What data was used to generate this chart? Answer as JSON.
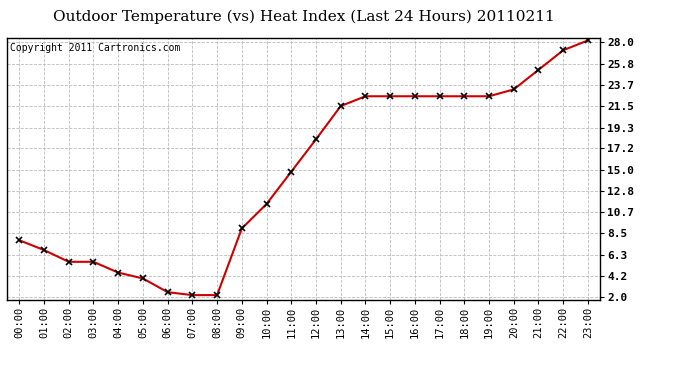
{
  "title": "Outdoor Temperature (vs) Heat Index (Last 24 Hours) 20110211",
  "copyright": "Copyright 2011 Cartronics.com",
  "x_labels": [
    "00:00",
    "01:00",
    "02:00",
    "03:00",
    "04:00",
    "05:00",
    "06:00",
    "07:00",
    "08:00",
    "09:00",
    "10:00",
    "11:00",
    "12:00",
    "13:00",
    "14:00",
    "15:00",
    "16:00",
    "17:00",
    "18:00",
    "19:00",
    "20:00",
    "21:00",
    "22:00",
    "23:00"
  ],
  "y_values": [
    7.8,
    6.8,
    5.6,
    5.6,
    4.5,
    3.9,
    2.5,
    2.2,
    2.2,
    9.0,
    11.5,
    14.8,
    18.1,
    21.5,
    22.5,
    22.5,
    22.5,
    22.5,
    22.5,
    22.5,
    23.2,
    25.2,
    27.2,
    28.2
  ],
  "line_color": "#cc0000",
  "marker": "x",
  "marker_color": "#000000",
  "background_color": "#ffffff",
  "grid_color": "#bbbbbb",
  "yticks": [
    2.0,
    4.2,
    6.3,
    8.5,
    10.7,
    12.8,
    15.0,
    17.2,
    19.3,
    21.5,
    23.7,
    25.8,
    28.0
  ],
  "ylim": [
    1.7,
    28.5
  ],
  "title_fontsize": 11,
  "copyright_fontsize": 7,
  "tick_fontsize": 7.5,
  "ytick_fontsize": 8
}
